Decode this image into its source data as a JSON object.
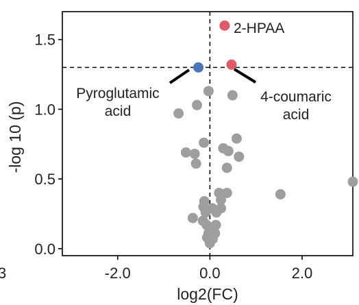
{
  "chart_data": {
    "type": "scatter",
    "xlabel": "log2(FC)",
    "ylabel": "-log 10 (p)",
    "xlim": [
      -3.2,
      3.1
    ],
    "ylim": [
      -0.05,
      1.7
    ],
    "x_ticks": [
      {
        "value": -2.0,
        "label": "-2.0"
      },
      {
        "value": 0.0,
        "label": "0.0"
      },
      {
        "value": 2.0,
        "label": "2.0"
      }
    ],
    "y_ticks": [
      {
        "value": 0.0,
        "label": "0.0"
      },
      {
        "value": 0.5,
        "label": "0.5"
      },
      {
        "value": 1.0,
        "label": "1.0"
      },
      {
        "value": 1.5,
        "label": "1.5"
      }
    ],
    "edge_label": "3",
    "threshold_y": 1.3,
    "threshold_x": 0.0,
    "colors": {
      "gray": "#9e9e9e",
      "blue": "#4a76b8",
      "red": "#de5a66",
      "guide": "#000000"
    },
    "points": [
      {
        "x": 0.32,
        "y": 1.6,
        "color": "red"
      },
      {
        "x": 0.47,
        "y": 1.32,
        "color": "red"
      },
      {
        "x": -0.25,
        "y": 1.3,
        "color": "blue"
      },
      {
        "x": -0.03,
        "y": 1.13,
        "color": "gray"
      },
      {
        "x": 0.49,
        "y": 1.1,
        "color": "gray"
      },
      {
        "x": -0.28,
        "y": 1.03,
        "color": "gray"
      },
      {
        "x": -0.68,
        "y": 0.97,
        "color": "gray"
      },
      {
        "x": 0.58,
        "y": 0.79,
        "color": "gray"
      },
      {
        "x": -0.13,
        "y": 0.76,
        "color": "gray"
      },
      {
        "x": 0.29,
        "y": 0.72,
        "color": "gray"
      },
      {
        "x": 0.4,
        "y": 0.7,
        "color": "gray"
      },
      {
        "x": -0.52,
        "y": 0.69,
        "color": "gray"
      },
      {
        "x": -0.33,
        "y": 0.68,
        "color": "gray"
      },
      {
        "x": 0.63,
        "y": 0.66,
        "color": "gray"
      },
      {
        "x": -0.3,
        "y": 0.61,
        "color": "gray"
      },
      {
        "x": 0.37,
        "y": 0.58,
        "color": "gray"
      },
      {
        "x": 3.1,
        "y": 0.48,
        "color": "gray"
      },
      {
        "x": 0.2,
        "y": 0.4,
        "color": "gray"
      },
      {
        "x": 0.37,
        "y": 0.4,
        "color": "gray"
      },
      {
        "x": 1.53,
        "y": 0.39,
        "color": "gray"
      },
      {
        "x": 0.24,
        "y": 0.35,
        "color": "gray"
      },
      {
        "x": -0.12,
        "y": 0.34,
        "color": "gray"
      },
      {
        "x": -0.14,
        "y": 0.3,
        "color": "gray"
      },
      {
        "x": 0.05,
        "y": 0.29,
        "color": "gray"
      },
      {
        "x": 0.24,
        "y": 0.29,
        "color": "gray"
      },
      {
        "x": -0.09,
        "y": 0.26,
        "color": "gray"
      },
      {
        "x": 0.14,
        "y": 0.26,
        "color": "gray"
      },
      {
        "x": -0.37,
        "y": 0.22,
        "color": "gray"
      },
      {
        "x": -0.15,
        "y": 0.2,
        "color": "gray"
      },
      {
        "x": -0.07,
        "y": 0.17,
        "color": "gray"
      },
      {
        "x": 0.13,
        "y": 0.17,
        "color": "gray"
      },
      {
        "x": 0.02,
        "y": 0.13,
        "color": "gray"
      },
      {
        "x": -0.03,
        "y": 0.11,
        "color": "gray"
      },
      {
        "x": 0.11,
        "y": 0.11,
        "color": "gray"
      },
      {
        "x": -0.06,
        "y": 0.08,
        "color": "gray"
      },
      {
        "x": 0.06,
        "y": 0.07,
        "color": "gray"
      },
      {
        "x": 0.0,
        "y": 0.04,
        "color": "gray"
      }
    ],
    "annotations": [
      {
        "lines": [
          "2-HPAA"
        ],
        "point_index": 0
      },
      {
        "lines": [
          "Pyroglutamic",
          "acid"
        ],
        "point_index": 2
      },
      {
        "lines": [
          "4-coumaric",
          "acid"
        ],
        "point_index": 1
      }
    ]
  }
}
